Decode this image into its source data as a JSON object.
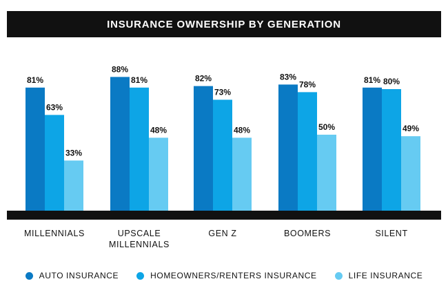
{
  "chart_data": {
    "type": "bar",
    "title": "INSURANCE OWNERSHIP BY GENERATION",
    "categories": [
      [
        "MILLENNIALS"
      ],
      [
        "UPSCALE",
        "MILLENNIALS"
      ],
      [
        "GEN Z"
      ],
      [
        "BOOMERS"
      ],
      [
        "SILENT"
      ]
    ],
    "series": [
      {
        "name": "AUTO INSURANCE",
        "color": "#0a7ac4",
        "values": [
          81,
          88,
          82,
          83,
          81
        ]
      },
      {
        "name": "HOMEOWNERS/RENTERS INSURANCE",
        "color": "#0da5e6",
        "values": [
          63,
          81,
          73,
          78,
          80
        ]
      },
      {
        "name": "LIFE INSURANCE",
        "color": "#66cbf2",
        "values": [
          33,
          48,
          48,
          50,
          49
        ]
      }
    ],
    "value_suffix": "%",
    "ylim": [
      0,
      100
    ],
    "grid": false,
    "legend_position": "bottom"
  }
}
